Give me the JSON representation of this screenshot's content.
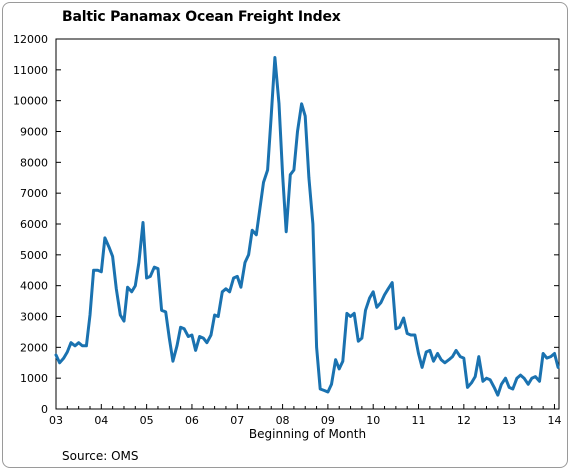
{
  "source_note": "Source: OMS",
  "chart_data": {
    "type": "line",
    "title": "Baltic Panamax Ocean Freight Index",
    "xlabel": "Beginning of Month",
    "ylabel": "",
    "ylim": [
      0,
      12000
    ],
    "yticks": [
      0,
      1000,
      2000,
      3000,
      4000,
      5000,
      6000,
      7000,
      8000,
      9000,
      10000,
      11000,
      12000
    ],
    "xlim": [
      2003.0,
      2014.1
    ],
    "xtick_values": [
      2003,
      2004,
      2005,
      2006,
      2007,
      2008,
      2009,
      2010,
      2011,
      2012,
      2013,
      2014
    ],
    "xtick_labels": [
      "03",
      "04",
      "05",
      "06",
      "07",
      "08",
      "09",
      "10",
      "11",
      "12",
      "13",
      "14"
    ],
    "grid": false,
    "line_color": "#1a72b0",
    "series": [
      {
        "name": "",
        "x": [
          2003.0,
          2003.08,
          2003.17,
          2003.25,
          2003.33,
          2003.42,
          2003.5,
          2003.58,
          2003.67,
          2003.75,
          2003.83,
          2003.92,
          2004.0,
          2004.08,
          2004.17,
          2004.25,
          2004.33,
          2004.42,
          2004.5,
          2004.58,
          2004.67,
          2004.75,
          2004.83,
          2004.92,
          2005.0,
          2005.08,
          2005.17,
          2005.25,
          2005.33,
          2005.42,
          2005.5,
          2005.58,
          2005.67,
          2005.75,
          2005.83,
          2005.92,
          2006.0,
          2006.08,
          2006.17,
          2006.25,
          2006.33,
          2006.42,
          2006.5,
          2006.58,
          2006.67,
          2006.75,
          2006.83,
          2006.92,
          2007.0,
          2007.08,
          2007.17,
          2007.25,
          2007.33,
          2007.42,
          2007.5,
          2007.58,
          2007.67,
          2007.75,
          2007.83,
          2007.92,
          2008.0,
          2008.08,
          2008.17,
          2008.25,
          2008.33,
          2008.42,
          2008.5,
          2008.58,
          2008.67,
          2008.75,
          2008.83,
          2008.92,
          2009.0,
          2009.08,
          2009.17,
          2009.25,
          2009.33,
          2009.42,
          2009.5,
          2009.58,
          2009.67,
          2009.75,
          2009.83,
          2009.92,
          2010.0,
          2010.08,
          2010.17,
          2010.25,
          2010.33,
          2010.42,
          2010.5,
          2010.58,
          2010.67,
          2010.75,
          2010.83,
          2010.92,
          2011.0,
          2011.08,
          2011.17,
          2011.25,
          2011.33,
          2011.42,
          2011.5,
          2011.58,
          2011.67,
          2011.75,
          2011.83,
          2011.92,
          2012.0,
          2012.08,
          2012.17,
          2012.25,
          2012.33,
          2012.42,
          2012.5,
          2012.58,
          2012.67,
          2012.75,
          2012.83,
          2012.92,
          2013.0,
          2013.08,
          2013.17,
          2013.25,
          2013.33,
          2013.42,
          2013.5,
          2013.58,
          2013.67,
          2013.75,
          2013.83,
          2013.92,
          2014.0,
          2014.08
        ],
        "y": [
          1750,
          1500,
          1650,
          1850,
          2150,
          2050,
          2150,
          2050,
          2050,
          3050,
          4500,
          4500,
          4450,
          5550,
          5250,
          4950,
          3900,
          3050,
          2850,
          3950,
          3800,
          4000,
          4750,
          6050,
          4250,
          4300,
          4600,
          4550,
          3200,
          3150,
          2300,
          1550,
          2050,
          2650,
          2600,
          2350,
          2400,
          1900,
          2350,
          2300,
          2150,
          2400,
          3050,
          3000,
          3800,
          3900,
          3800,
          4250,
          4300,
          3950,
          4750,
          5000,
          5800,
          5650,
          6500,
          7350,
          7750,
          9500,
          11400,
          9900,
          7600,
          5750,
          7600,
          7750,
          9000,
          9900,
          9500,
          7500,
          6000,
          2000,
          650,
          600,
          550,
          800,
          1600,
          1300,
          1550,
          3100,
          3000,
          3100,
          2200,
          2300,
          3200,
          3600,
          3800,
          3300,
          3450,
          3700,
          3900,
          4100,
          2600,
          2650,
          2950,
          2450,
          2400,
          2400,
          1800,
          1350,
          1850,
          1900,
          1550,
          1800,
          1600,
          1500,
          1600,
          1700,
          1900,
          1700,
          1650,
          700,
          850,
          1050,
          1700,
          900,
          1000,
          950,
          700,
          450,
          800,
          1000,
          700,
          650,
          1000,
          1100,
          1000,
          800,
          1000,
          1050,
          900,
          1800,
          1650,
          1700,
          1800,
          1350
        ]
      }
    ]
  }
}
